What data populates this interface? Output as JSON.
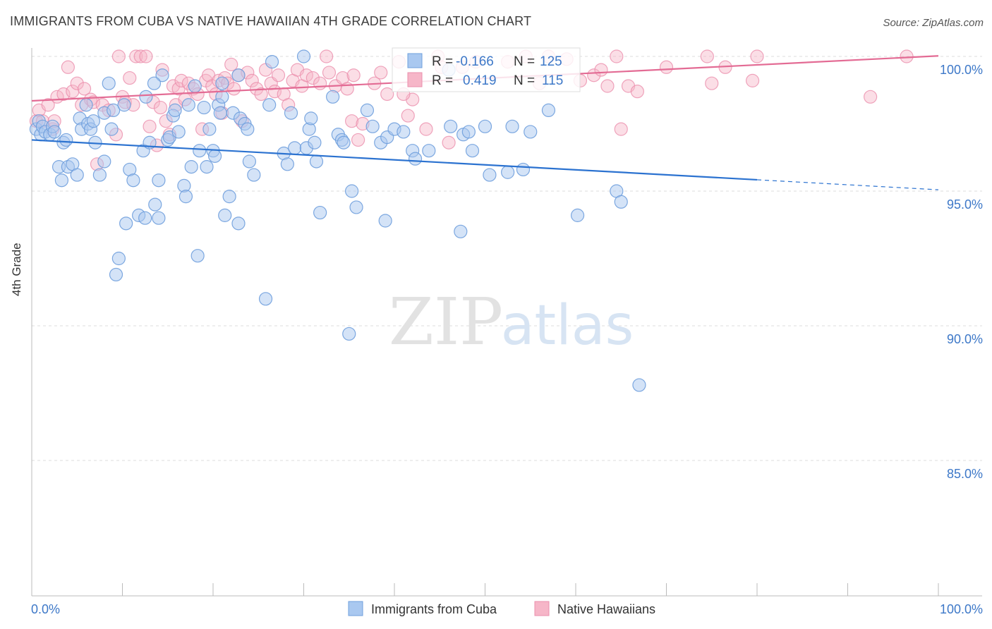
{
  "header": {
    "title": "IMMIGRANTS FROM CUBA VS NATIVE HAWAIIAN 4TH GRADE CORRELATION CHART",
    "source": "Source: ZipAtlas.com"
  },
  "watermark": {
    "zip": "ZIP",
    "atlas": "atlas"
  },
  "colors": {
    "blue_fill": "#a9c8f0",
    "blue_stroke": "#6f9fdd",
    "blue_line": "#2b72d0",
    "pink_fill": "#f6b6c8",
    "pink_stroke": "#eb8fad",
    "pink_line": "#e36b94",
    "tick_label": "#3d78c8",
    "grid": "#dddddd"
  },
  "chart_data": {
    "type": "scatter",
    "title": "IMMIGRANTS FROM CUBA VS NATIVE HAWAIIAN 4TH GRADE CORRELATION CHART",
    "xlabel": "",
    "ylabel": "4th Grade",
    "xlim": [
      0,
      100
    ],
    "ylim": [
      80.5,
      100.9
    ],
    "x_tick_labels": [
      "0.0%",
      "100.0%"
    ],
    "y_ticks": [
      85,
      90,
      95,
      100
    ],
    "y_tick_labels": [
      "85.0%",
      "90.0%",
      "95.0%",
      "100.0%"
    ],
    "grid": "horizontal dashed",
    "legend_position": "top-center",
    "series": [
      {
        "name": "Immigrants from Cuba",
        "color": "blue",
        "stats": {
          "r_label": "R =",
          "r_value": "-0.166",
          "n_label": "N =",
          "n_value": "125"
        },
        "trend": {
          "x0": 0,
          "y0": 96.9,
          "x1": 80,
          "y1": 95.42,
          "dash_to_x": 100,
          "dash_to_y": 95.05
        },
        "points": [
          [
            0.5,
            97.3
          ],
          [
            0.8,
            97.6
          ],
          [
            1.0,
            97.1
          ],
          [
            1.2,
            97.4
          ],
          [
            1.5,
            97.2
          ],
          [
            2.0,
            97.1
          ],
          [
            2.3,
            97.4
          ],
          [
            2.5,
            97.2
          ],
          [
            3.0,
            95.9
          ],
          [
            3.3,
            95.4
          ],
          [
            3.5,
            96.8
          ],
          [
            3.8,
            96.9
          ],
          [
            4.0,
            95.9
          ],
          [
            4.5,
            96.0
          ],
          [
            5.0,
            95.6
          ],
          [
            5.3,
            97.7
          ],
          [
            5.5,
            97.3
          ],
          [
            6.0,
            98.2
          ],
          [
            6.2,
            97.5
          ],
          [
            6.5,
            97.3
          ],
          [
            6.8,
            97.6
          ],
          [
            7.0,
            96.8
          ],
          [
            7.5,
            95.6
          ],
          [
            8.0,
            96.1
          ],
          [
            8.0,
            97.9
          ],
          [
            8.5,
            99.0
          ],
          [
            8.8,
            97.3
          ],
          [
            9.0,
            98.0
          ],
          [
            9.3,
            91.9
          ],
          [
            9.6,
            92.5
          ],
          [
            10.2,
            98.2
          ],
          [
            10.4,
            93.8
          ],
          [
            10.8,
            95.8
          ],
          [
            11.2,
            95.4
          ],
          [
            11.8,
            94.1
          ],
          [
            12.3,
            96.5
          ],
          [
            12.5,
            94.0
          ],
          [
            12.6,
            98.5
          ],
          [
            13.0,
            96.8
          ],
          [
            13.6,
            94.5
          ],
          [
            14.0,
            95.4
          ],
          [
            14.0,
            94.0
          ],
          [
            14.4,
            99.3
          ],
          [
            15.0,
            96.9
          ],
          [
            15.2,
            97.0
          ],
          [
            15.6,
            97.8
          ],
          [
            15.8,
            98.0
          ],
          [
            16.2,
            97.2
          ],
          [
            16.8,
            95.2
          ],
          [
            17.0,
            94.8
          ],
          [
            17.3,
            98.2
          ],
          [
            17.6,
            95.9
          ],
          [
            18.0,
            98.9
          ],
          [
            18.3,
            92.6
          ],
          [
            18.5,
            96.5
          ],
          [
            19.0,
            98.1
          ],
          [
            19.3,
            95.9
          ],
          [
            19.6,
            97.3
          ],
          [
            20.0,
            96.5
          ],
          [
            20.2,
            96.3
          ],
          [
            20.6,
            98.2
          ],
          [
            20.8,
            97.9
          ],
          [
            21.0,
            98.5
          ],
          [
            21.3,
            94.1
          ],
          [
            21.8,
            94.8
          ],
          [
            22.2,
            97.9
          ],
          [
            22.8,
            93.8
          ],
          [
            22.8,
            99.3
          ],
          [
            23.0,
            97.7
          ],
          [
            23.5,
            97.5
          ],
          [
            23.8,
            97.3
          ],
          [
            24.0,
            96.1
          ],
          [
            24.5,
            95.6
          ],
          [
            26.2,
            98.2
          ],
          [
            25.8,
            91.0
          ],
          [
            27.8,
            96.4
          ],
          [
            28.2,
            96.0
          ],
          [
            28.6,
            97.9
          ],
          [
            29.0,
            96.6
          ],
          [
            30.3,
            96.6
          ],
          [
            30.6,
            97.3
          ],
          [
            30.8,
            97.7
          ],
          [
            31.2,
            96.8
          ],
          [
            31.4,
            96.1
          ],
          [
            31.8,
            94.2
          ],
          [
            33.2,
            98.5
          ],
          [
            33.8,
            97.1
          ],
          [
            34.2,
            96.9
          ],
          [
            34.4,
            96.8
          ],
          [
            35.0,
            89.7
          ],
          [
            35.3,
            95.0
          ],
          [
            35.8,
            94.4
          ],
          [
            37.0,
            98.0
          ],
          [
            37.6,
            97.4
          ],
          [
            38.5,
            96.8
          ],
          [
            39.0,
            93.9
          ],
          [
            39.2,
            97.0
          ],
          [
            40.0,
            97.3
          ],
          [
            41.0,
            97.2
          ],
          [
            42.0,
            96.5
          ],
          [
            42.3,
            96.2
          ],
          [
            43.8,
            96.5
          ],
          [
            46.2,
            97.4
          ],
          [
            47.3,
            93.5
          ],
          [
            47.6,
            97.1
          ],
          [
            48.2,
            97.2
          ],
          [
            48.6,
            96.5
          ],
          [
            50.0,
            97.4
          ],
          [
            50.5,
            95.6
          ],
          [
            52.5,
            95.7
          ],
          [
            53.0,
            97.4
          ],
          [
            54.2,
            95.8
          ],
          [
            55.0,
            97.2
          ],
          [
            57.0,
            98.0
          ],
          [
            60.2,
            94.1
          ],
          [
            64.5,
            95.0
          ],
          [
            65.0,
            94.6
          ],
          [
            67.0,
            87.8
          ],
          [
            26.5,
            99.8
          ],
          [
            30.0,
            100.0
          ],
          [
            46.0,
            99.5
          ],
          [
            13.5,
            99.0
          ],
          [
            21.0,
            99.0
          ]
        ]
      },
      {
        "name": "Native Hawaiians",
        "color": "pink",
        "stats": {
          "r_label": "R =",
          "r_value": "0.419",
          "n_label": "N =",
          "n_value": "115"
        },
        "trend": {
          "x0": 0,
          "y0": 98.35,
          "x1": 100,
          "y1": 100.02
        },
        "points": [
          [
            0.5,
            97.6
          ],
          [
            0.8,
            98.0
          ],
          [
            1.2,
            97.6
          ],
          [
            1.8,
            98.2
          ],
          [
            2.3,
            97.3
          ],
          [
            2.5,
            97.6
          ],
          [
            2.8,
            98.5
          ],
          [
            3.5,
            98.6
          ],
          [
            4.0,
            99.6
          ],
          [
            4.5,
            98.7
          ],
          [
            5.0,
            99.0
          ],
          [
            5.5,
            98.2
          ],
          [
            5.8,
            98.8
          ],
          [
            6.5,
            98.4
          ],
          [
            6.8,
            98.3
          ],
          [
            7.2,
            96.0
          ],
          [
            7.8,
            98.2
          ],
          [
            8.5,
            98.0
          ],
          [
            9.3,
            97.1
          ],
          [
            9.6,
            100.0
          ],
          [
            10.0,
            98.5
          ],
          [
            10.3,
            98.3
          ],
          [
            10.8,
            99.2
          ],
          [
            11.2,
            98.2
          ],
          [
            11.5,
            100.0
          ],
          [
            12.0,
            100.0
          ],
          [
            12.6,
            100.0
          ],
          [
            13.0,
            97.4
          ],
          [
            13.4,
            98.3
          ],
          [
            13.8,
            96.7
          ],
          [
            14.2,
            98.1
          ],
          [
            14.4,
            99.5
          ],
          [
            14.8,
            97.6
          ],
          [
            15.2,
            97.1
          ],
          [
            15.6,
            98.9
          ],
          [
            15.9,
            98.2
          ],
          [
            16.2,
            98.8
          ],
          [
            16.5,
            99.1
          ],
          [
            16.9,
            98.4
          ],
          [
            17.3,
            99.0
          ],
          [
            17.8,
            98.8
          ],
          [
            18.3,
            98.6
          ],
          [
            18.8,
            97.3
          ],
          [
            19.2,
            99.1
          ],
          [
            19.5,
            99.3
          ],
          [
            19.9,
            98.9
          ],
          [
            20.3,
            98.6
          ],
          [
            20.6,
            99.1
          ],
          [
            21.0,
            97.9
          ],
          [
            21.3,
            99.2
          ],
          [
            21.6,
            99.0
          ],
          [
            22.0,
            99.7
          ],
          [
            22.3,
            98.8
          ],
          [
            22.8,
            99.3
          ],
          [
            23.2,
            97.6
          ],
          [
            23.8,
            99.4
          ],
          [
            24.3,
            99.1
          ],
          [
            24.8,
            98.8
          ],
          [
            25.3,
            98.6
          ],
          [
            25.8,
            99.5
          ],
          [
            26.4,
            99.0
          ],
          [
            26.8,
            98.7
          ],
          [
            27.2,
            99.3
          ],
          [
            27.8,
            98.6
          ],
          [
            28.3,
            98.2
          ],
          [
            28.8,
            99.1
          ],
          [
            29.3,
            99.5
          ],
          [
            29.8,
            98.9
          ],
          [
            30.3,
            99.3
          ],
          [
            31.0,
            99.2
          ],
          [
            31.8,
            99.0
          ],
          [
            32.5,
            100.0
          ],
          [
            32.8,
            99.4
          ],
          [
            33.5,
            98.9
          ],
          [
            34.3,
            99.2
          ],
          [
            34.8,
            98.8
          ],
          [
            35.3,
            97.6
          ],
          [
            36.0,
            96.9
          ],
          [
            36.5,
            97.5
          ],
          [
            37.8,
            99.0
          ],
          [
            38.5,
            99.4
          ],
          [
            39.2,
            98.6
          ],
          [
            40.5,
            99.8
          ],
          [
            41.5,
            97.8
          ],
          [
            42.0,
            98.4
          ],
          [
            43.5,
            97.3
          ],
          [
            44.8,
            100.0
          ],
          [
            45.2,
            99.6
          ],
          [
            46.0,
            96.8
          ],
          [
            47.5,
            99.6
          ],
          [
            49.0,
            99.8
          ],
          [
            52.5,
            99.8
          ],
          [
            54.5,
            100.0
          ],
          [
            57.0,
            100.0
          ],
          [
            59.0,
            99.9
          ],
          [
            60.5,
            99.1
          ],
          [
            62.0,
            99.3
          ],
          [
            63.5,
            98.9
          ],
          [
            64.5,
            100.0
          ],
          [
            65.0,
            97.3
          ],
          [
            65.8,
            98.9
          ],
          [
            66.8,
            98.7
          ],
          [
            70.0,
            99.6
          ],
          [
            74.5,
            100.0
          ],
          [
            75.0,
            99.0
          ],
          [
            76.5,
            99.6
          ],
          [
            79.5,
            99.1
          ],
          [
            80.0,
            100.0
          ],
          [
            92.5,
            98.5
          ],
          [
            96.5,
            100.0
          ],
          [
            35.5,
            99.3
          ],
          [
            56.0,
            99.0
          ],
          [
            41.0,
            98.6
          ],
          [
            62.8,
            99.5
          ]
        ]
      }
    ]
  }
}
